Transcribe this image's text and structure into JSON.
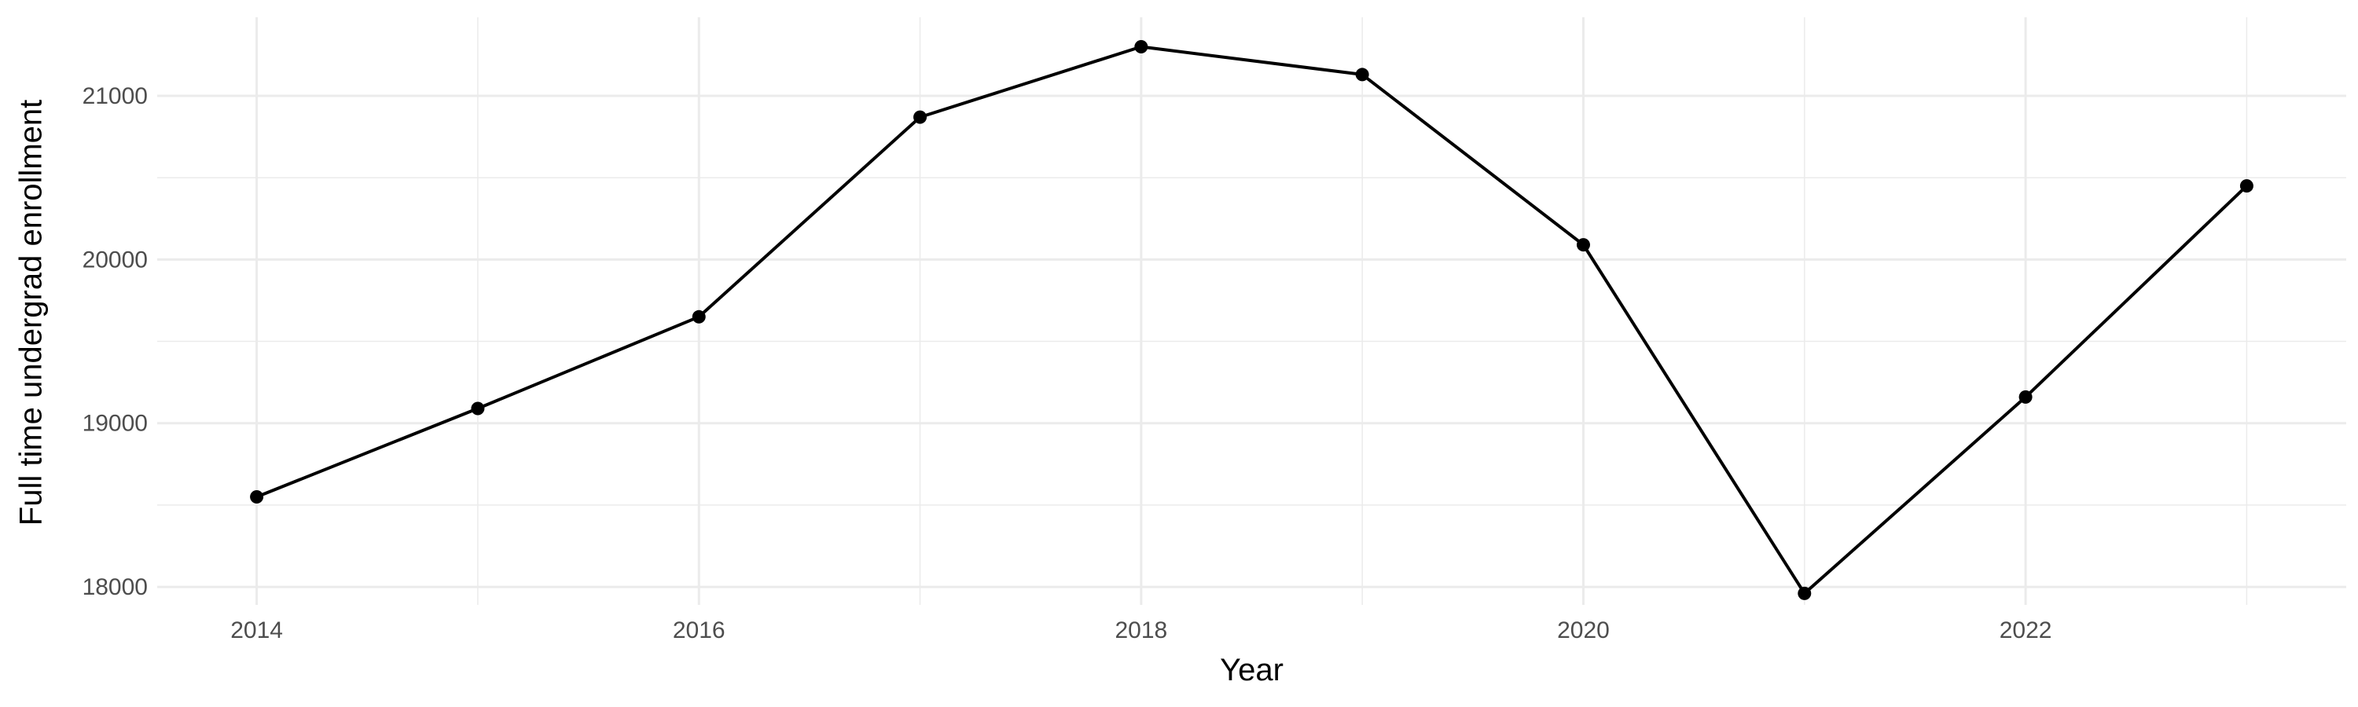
{
  "chart_data": {
    "type": "line",
    "title": "",
    "xlabel": "Year",
    "ylabel": "Full time undergrad enrollment",
    "x": [
      2014,
      2015,
      2016,
      2017,
      2018,
      2019,
      2020,
      2021,
      2022,
      2023
    ],
    "series": [
      {
        "values": [
          18550,
          19090,
          19650,
          20870,
          21300,
          21130,
          20090,
          17960,
          19160,
          20450
        ],
        "color": "#000000"
      }
    ],
    "xlim": [
      2013.55,
      2023.45
    ],
    "ylim": [
      17890,
      21480
    ],
    "x_ticks": [
      2014,
      2016,
      2018,
      2020,
      2022
    ],
    "x_tick_labels": [
      "2014",
      "2016",
      "2018",
      "2020",
      "2022"
    ],
    "y_ticks": [
      18000,
      19000,
      20000,
      21000
    ],
    "y_tick_labels": [
      "18000",
      "19000",
      "20000",
      "21000"
    ],
    "x_minor_ticks": [
      2015,
      2017,
      2019,
      2021,
      2023
    ],
    "y_minor_ticks": [
      18500,
      19500,
      20500
    ],
    "grid": true,
    "legend": "none",
    "theme": "minimal"
  }
}
